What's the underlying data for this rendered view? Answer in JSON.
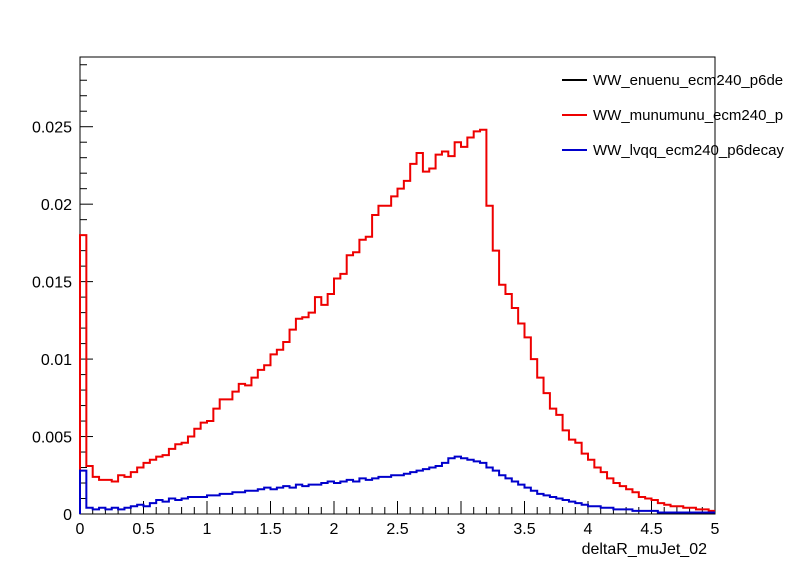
{
  "chart_data": {
    "type": "histogram-step",
    "title": "",
    "xlabel": "deltaR_muJet_02",
    "ylabel": "",
    "xlim": [
      0,
      5
    ],
    "ylim": [
      0,
      0.0295
    ],
    "grid": false,
    "legend_position": "top-right",
    "bin_edges_start": 0,
    "bin_width": 0.05,
    "x_ticks": [
      "0",
      "0.5",
      "1",
      "1.5",
      "2",
      "2.5",
      "3",
      "3.5",
      "4",
      "4.5",
      "5"
    ],
    "x_tick_values": [
      0,
      0.5,
      1,
      1.5,
      2,
      2.5,
      3,
      3.5,
      4,
      4.5,
      5
    ],
    "y_ticks": [
      "0",
      "0.005",
      "0.01",
      "0.015",
      "0.02",
      "0.025"
    ],
    "y_tick_values": [
      0,
      0.005,
      0.01,
      0.015,
      0.02,
      0.025
    ],
    "series": [
      {
        "name": "WW_enuenu_ecm240_p6de",
        "color": "#000000",
        "values": []
      },
      {
        "name": "WW_munumunu_ecm240_p",
        "color": "#ee0000",
        "values": [
          0.018,
          0.0031,
          0.0024,
          0.0022,
          0.0022,
          0.0021,
          0.0025,
          0.0024,
          0.0027,
          0.003,
          0.0033,
          0.0035,
          0.0037,
          0.0038,
          0.0042,
          0.0045,
          0.0046,
          0.005,
          0.0055,
          0.0059,
          0.006,
          0.0068,
          0.0074,
          0.0074,
          0.0079,
          0.0084,
          0.0083,
          0.0088,
          0.0093,
          0.0096,
          0.0103,
          0.0106,
          0.0111,
          0.0119,
          0.0126,
          0.0127,
          0.013,
          0.014,
          0.0135,
          0.0142,
          0.0152,
          0.0155,
          0.0167,
          0.0169,
          0.0177,
          0.0179,
          0.0193,
          0.0199,
          0.0199,
          0.0205,
          0.021,
          0.0215,
          0.0226,
          0.0233,
          0.0221,
          0.0223,
          0.0232,
          0.0234,
          0.0231,
          0.024,
          0.0237,
          0.0243,
          0.0247,
          0.0248,
          0.0199,
          0.017,
          0.0148,
          0.0142,
          0.0133,
          0.0123,
          0.0114,
          0.01,
          0.0088,
          0.0078,
          0.0068,
          0.0064,
          0.0054,
          0.0048,
          0.0046,
          0.0039,
          0.0035,
          0.003,
          0.0027,
          0.0023,
          0.002,
          0.0018,
          0.0016,
          0.0014,
          0.0011,
          0.001,
          0.0009,
          0.0007,
          0.0006,
          0.0005,
          0.0005,
          0.0004,
          0.0004,
          0.0003,
          0.0003,
          0.0002
        ]
      },
      {
        "name": "WW_lvqq_ecm240_p6decay",
        "color": "#0000cc",
        "values": [
          0.0028,
          0.0004,
          0.0003,
          0.0004,
          0.0003,
          0.0004,
          0.0003,
          0.0004,
          0.0005,
          0.0006,
          0.0005,
          0.0007,
          0.0009,
          0.0008,
          0.001,
          0.0009,
          0.001,
          0.0011,
          0.0011,
          0.0011,
          0.0012,
          0.0012,
          0.0013,
          0.0013,
          0.0014,
          0.0014,
          0.0015,
          0.0015,
          0.0016,
          0.0017,
          0.0016,
          0.0017,
          0.0018,
          0.0017,
          0.0019,
          0.0018,
          0.0019,
          0.0019,
          0.002,
          0.0021,
          0.002,
          0.0021,
          0.0022,
          0.0021,
          0.0023,
          0.0022,
          0.0023,
          0.0024,
          0.0024,
          0.0025,
          0.0025,
          0.0026,
          0.0027,
          0.0028,
          0.0029,
          0.003,
          0.0031,
          0.0033,
          0.0036,
          0.0037,
          0.0036,
          0.0035,
          0.0034,
          0.0033,
          0.003,
          0.0028,
          0.0025,
          0.0023,
          0.0021,
          0.0019,
          0.0017,
          0.0015,
          0.0013,
          0.0012,
          0.0011,
          0.001,
          0.0009,
          0.0008,
          0.0007,
          0.0006,
          0.0005,
          0.0005,
          0.0004,
          0.0004,
          0.0003,
          0.0003,
          0.0003,
          0.0002,
          0.0002,
          0.0002,
          0.0002,
          0.0001,
          0.0001,
          0.0001,
          0.0001,
          0.0001,
          0.0001,
          0.0001,
          0.0001,
          0.0001
        ]
      }
    ]
  }
}
